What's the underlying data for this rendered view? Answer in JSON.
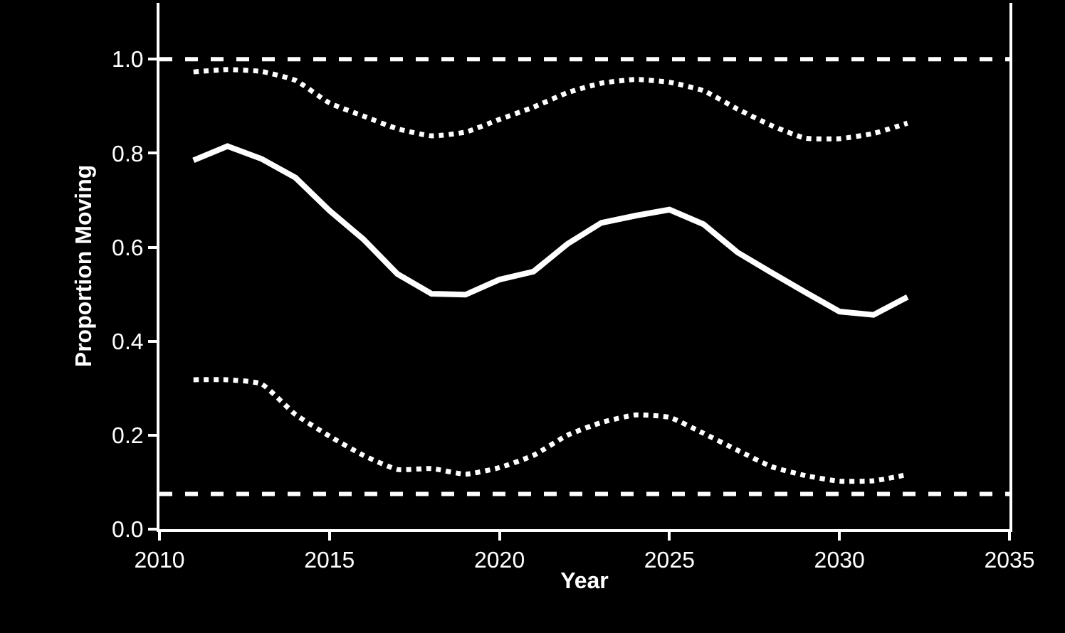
{
  "chart_data": {
    "type": "line",
    "xlabel": "Year",
    "ylabel": "Proportion Moving",
    "x": [
      2011,
      2012,
      2013,
      2014,
      2015,
      2016,
      2017,
      2018,
      2019,
      2020,
      2021,
      2022,
      2023,
      2024,
      2025,
      2026,
      2027,
      2028,
      2029,
      2030,
      2031,
      2032
    ],
    "series": [
      {
        "color": "#ffffff",
        "line_style": "dotted",
        "values": [
          0.973,
          0.978,
          0.974,
          0.955,
          0.907,
          0.879,
          0.852,
          0.837,
          0.845,
          0.872,
          0.898,
          0.929,
          0.949,
          0.957,
          0.951,
          0.933,
          0.894,
          0.859,
          0.832,
          0.831,
          0.842,
          0.864
        ]
      },
      {
        "color": "#ffffff",
        "line_style": "solid",
        "values": [
          0.785,
          0.815,
          0.788,
          0.748,
          0.678,
          0.617,
          0.543,
          0.501,
          0.499,
          0.531,
          0.548,
          0.607,
          0.652,
          0.667,
          0.68,
          0.649,
          0.589,
          0.546,
          0.504,
          0.463,
          0.456,
          0.494
        ]
      },
      {
        "color": "#ffffff",
        "line_style": "dotted",
        "values": [
          0.318,
          0.318,
          0.309,
          0.244,
          0.198,
          0.157,
          0.127,
          0.129,
          0.117,
          0.131,
          0.157,
          0.2,
          0.227,
          0.243,
          0.238,
          0.204,
          0.168,
          0.133,
          0.114,
          0.102,
          0.103,
          0.116
        ]
      }
    ],
    "ref_lines": [
      {
        "axis": "y",
        "value": 1.0,
        "color": "#ffffff",
        "line_style": "dashed"
      },
      {
        "axis": "y",
        "value": 0.075,
        "color": "#ffffff",
        "line_style": "dashed"
      }
    ],
    "xlim": [
      2010,
      2035
    ],
    "xticks": [
      2010,
      2015,
      2020,
      2025,
      2030,
      2035
    ],
    "ylim": [
      0,
      1.12
    ],
    "yticks": [
      {
        "value": 0,
        "label": "0.0"
      },
      0.2,
      0.4,
      0.6,
      0.8,
      {
        "value": 1.0,
        "label": "1.0"
      }
    ],
    "grid": false
  }
}
